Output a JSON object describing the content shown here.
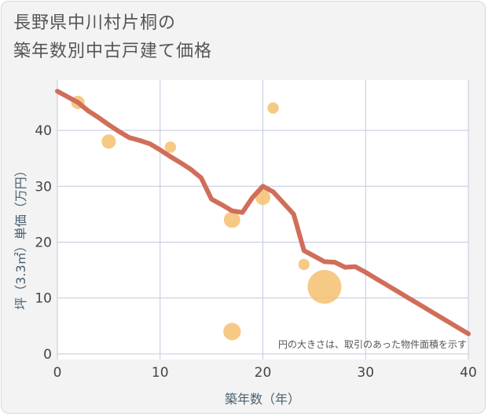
{
  "title": "長野県中川村片桐の\n築年数別中古戸建て価格",
  "chart_data": {
    "type": "scatter",
    "title": "長野県中川村片桐の築年数別中古戸建て価格",
    "xlabel": "築年数（年）",
    "ylabel": "坪（3.3㎡）単価（万円）",
    "xlim": [
      0,
      40
    ],
    "ylim": [
      -1,
      49
    ],
    "xticks": [
      0,
      10,
      20,
      30,
      40
    ],
    "yticks": [
      0,
      10,
      20,
      30,
      40
    ],
    "grid": true,
    "note": "円の大きさは、取引のあった物件面積を示す",
    "colors": {
      "bubble": "#f5c070",
      "trend": "#d06e5a",
      "grid": "#c3c9dc",
      "plot_bg": "#ffffff"
    },
    "bubbles": [
      {
        "x": 2,
        "y": 45,
        "size": 2
      },
      {
        "x": 5,
        "y": 38,
        "size": 2.5
      },
      {
        "x": 11,
        "y": 37,
        "size": 1
      },
      {
        "x": 17,
        "y": 24,
        "size": 4
      },
      {
        "x": 17,
        "y": 4,
        "size": 5
      },
      {
        "x": 20,
        "y": 28,
        "size": 3
      },
      {
        "x": 21,
        "y": 44,
        "size": 1
      },
      {
        "x": 24,
        "y": 16,
        "size": 1
      },
      {
        "x": 26,
        "y": 12,
        "size": 30
      }
    ],
    "trend": {
      "x": [
        0,
        1,
        2,
        3,
        4,
        5,
        6,
        7,
        8,
        9,
        10,
        11,
        12,
        13,
        14,
        15,
        16,
        17,
        18,
        19,
        20,
        21,
        22,
        23,
        24,
        25,
        26,
        27,
        28,
        29,
        30,
        31,
        32,
        33,
        34,
        35,
        36,
        37,
        38,
        39,
        40
      ],
      "y": [
        47,
        46,
        45,
        43.5,
        42.3,
        41,
        39.8,
        38.7,
        38.2,
        37.6,
        36.5,
        35.3,
        34.2,
        33,
        31.5,
        27.7,
        26.7,
        25.6,
        25.3,
        28,
        30,
        29,
        27,
        25,
        18.5,
        17.5,
        16.5,
        16.4,
        15.5,
        15.6,
        14.6,
        13.5,
        12.4,
        11.3,
        10.2,
        9.1,
        8.0,
        6.9,
        5.8,
        4.7,
        3.6
      ]
    }
  }
}
